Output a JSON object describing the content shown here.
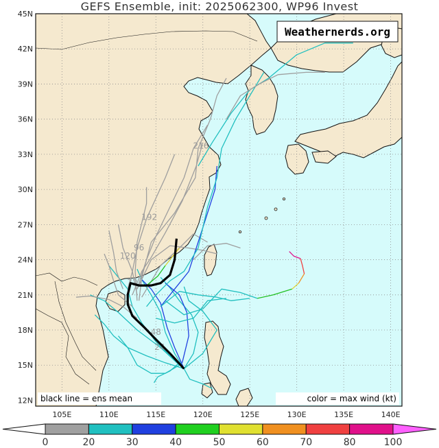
{
  "title": "GEFS Ensemble, init: 2025062300, WP96 Invest",
  "watermark": "Weathernerds.org",
  "note_left": "black line = ens mean",
  "note_right": "color = max wind (kt)",
  "lat_labels": [
    "12N",
    "15N",
    "18N",
    "21N",
    "24N",
    "27N",
    "30N",
    "33N",
    "36N",
    "39N",
    "42N",
    "45N"
  ],
  "lon_labels": [
    "105E",
    "110E",
    "115E",
    "120E",
    "125E",
    "130E",
    "135E",
    "140E"
  ],
  "track_hour_labels": [
    "24",
    "48",
    "72",
    "96",
    "120",
    "192",
    "216"
  ],
  "colorbar": {
    "ticks": [
      "0",
      "20",
      "30",
      "40",
      "50",
      "60",
      "70",
      "80",
      "100"
    ],
    "colors": [
      "#a0a0a0",
      "#20c0c0",
      "#2040e0",
      "#20d020",
      "#e0e030",
      "#f09020",
      "#f04040",
      "#e0108a"
    ],
    "colors_note_min": "#ffffff",
    "colors_note_max": "#ff60ff"
  },
  "colors": {
    "ocean": "#d6fbfb",
    "land": "#f5e9cf",
    "coast": "#111111",
    "grid": "#8a8a8a",
    "mean": "#000000"
  }
}
